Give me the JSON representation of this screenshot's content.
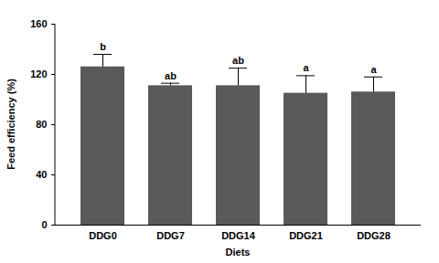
{
  "chart_data": {
    "type": "bar",
    "x_label": "Diets",
    "y_label": "Feed efficiency (%)",
    "categories": [
      "DDG0",
      "DDG7",
      "DDG14",
      "DDG21",
      "DDG28"
    ],
    "values": [
      126,
      111,
      111,
      105,
      106
    ],
    "errors": [
      10,
      2,
      14,
      14,
      12
    ],
    "letters": [
      "b",
      "ab",
      "ab",
      "a",
      "a"
    ],
    "color": "#595959",
    "ylim": [
      0,
      160
    ],
    "yticks": [
      0,
      40,
      80,
      120,
      160
    ],
    "grid": false
  }
}
